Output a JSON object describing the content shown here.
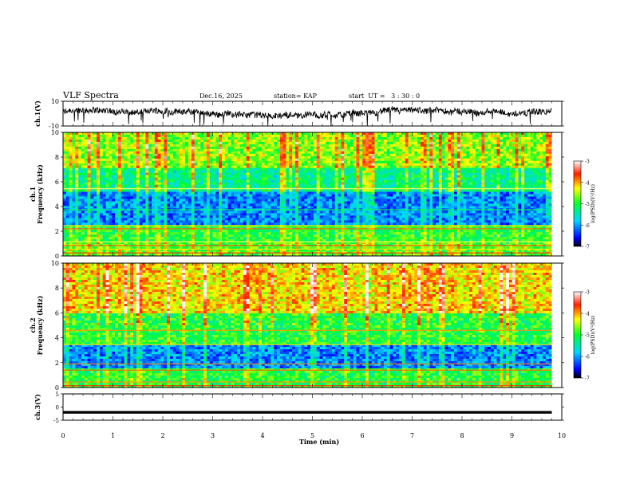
{
  "header": {
    "title": "VLF Spectra",
    "date": "Dec.16, 2025",
    "station": "station= KAP",
    "start_ut": "start  UT =   3 : 30 : 0"
  },
  "chart_data": [
    {
      "type": "line",
      "name": "ch1-waveform",
      "ylabel": "ch.1(V)",
      "ylim": [
        -10,
        10
      ],
      "ytick_labels": [
        "10",
        "-10"
      ],
      "xlim": [
        0,
        10
      ],
      "description_series": "noisy waveform, mean about +1 V, amplitude about 4 V"
    },
    {
      "type": "heatmap",
      "name": "ch1-spectrogram",
      "ylabel": "ch.1 Frequency (kHz)",
      "ylim": [
        0,
        10
      ],
      "ytick_labels": [
        "0",
        "2",
        "4",
        "6",
        "8",
        "10"
      ],
      "xlim": [
        0,
        9.8
      ],
      "colorbar": {
        "label": "log(PSD)(V²/Hz)",
        "range": [
          -7,
          -3
        ],
        "tick_labels": [
          "-3",
          "-4",
          "-5",
          "-6",
          "-7"
        ]
      },
      "bands_khz": [
        {
          "from": 0.0,
          "to": 1.2,
          "level": -4.8
        },
        {
          "from": 1.2,
          "to": 2.5,
          "level": -5.0
        },
        {
          "from": 2.5,
          "to": 5.2,
          "level": -6.1
        },
        {
          "from": 5.2,
          "to": 7.2,
          "level": -5.3
        },
        {
          "from": 7.2,
          "to": 10.0,
          "level": -4.6
        }
      ]
    },
    {
      "type": "heatmap",
      "name": "ch2-spectrogram",
      "ylabel": "ch.2 Frequency (kHz)",
      "ylim": [
        0,
        10
      ],
      "ytick_labels": [
        "0",
        "2",
        "4",
        "6",
        "8",
        "10"
      ],
      "xlim": [
        0,
        9.8
      ],
      "colorbar": {
        "label": "log(PSD)(V²/Hz)",
        "range": [
          -7,
          -3
        ],
        "tick_labels": [
          "-3",
          "-4",
          "-5",
          "-6",
          "-7"
        ]
      },
      "bands_khz": [
        {
          "from": 0.0,
          "to": 1.5,
          "level": -5.0
        },
        {
          "from": 1.5,
          "to": 3.4,
          "level": -6.1
        },
        {
          "from": 3.4,
          "to": 6.0,
          "level": -5.0
        },
        {
          "from": 6.0,
          "to": 10.0,
          "level": -4.2
        }
      ]
    },
    {
      "type": "line",
      "name": "ch3-waveform",
      "ylabel": "ch.3(V)",
      "ylim": [
        -5,
        5
      ],
      "ytick_labels": [
        "5",
        "0",
        "-5"
      ],
      "xlim": [
        0,
        10
      ],
      "description_series": "saturated thick band centered at about -2 V"
    }
  ],
  "x_axis": {
    "label": "Time (min)",
    "tick_labels": [
      "0",
      "1",
      "2",
      "3",
      "4",
      "5",
      "6",
      "7",
      "8",
      "9",
      "10"
    ]
  }
}
